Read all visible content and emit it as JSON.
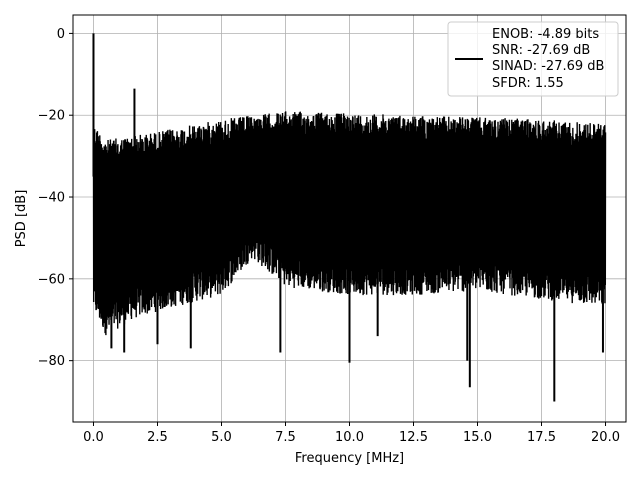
{
  "chart_data": {
    "type": "line",
    "title": "",
    "xlabel": "Frequency [MHz]",
    "ylabel": "PSD [dB]",
    "xlim": [
      -0.8,
      20.8
    ],
    "ylim": [
      -95,
      4.5
    ],
    "xticks": [
      "0.0",
      "2.5",
      "5.0",
      "7.5",
      "10.0",
      "12.5",
      "15.0",
      "17.5",
      "20.0"
    ],
    "xtick_values": [
      0,
      2.5,
      5,
      7.5,
      10,
      12.5,
      15,
      17.5,
      20
    ],
    "yticks": [
      "0",
      "−20",
      "−40",
      "−60",
      "−80"
    ],
    "ytick_values": [
      0,
      -20,
      -40,
      -60,
      -80
    ],
    "grid": true,
    "legend_position": "top-right",
    "legend": [
      "ENOB: -4.89 bits",
      "SNR: -27.69 dB",
      "SINAD: -27.69 dB",
      "SFDR: 1.55"
    ],
    "series": [
      {
        "color": "#000000",
        "x_start": 0,
        "x_end": 20,
        "upper_envelope": [
          [
            0,
            -22
          ],
          [
            0.5,
            -26
          ],
          [
            1.5,
            -25
          ],
          [
            2.5,
            -24
          ],
          [
            5,
            -21
          ],
          [
            7.5,
            -19
          ],
          [
            10,
            -19.5
          ],
          [
            12.5,
            -20
          ],
          [
            15,
            -20.5
          ],
          [
            17.5,
            -21
          ],
          [
            20,
            -22
          ]
        ],
        "lower_envelope": [
          [
            0,
            -68
          ],
          [
            0.5,
            -74
          ],
          [
            1.5,
            -70
          ],
          [
            2.5,
            -68
          ],
          [
            5,
            -64
          ],
          [
            6.2,
            -55
          ],
          [
            7.5,
            -62
          ],
          [
            10,
            -64
          ],
          [
            12.5,
            -64
          ],
          [
            15,
            -63
          ],
          [
            17.5,
            -65
          ],
          [
            20,
            -67
          ]
        ],
        "spikes": [
          {
            "x": 0.0,
            "y": 0
          },
          {
            "x": 1.6,
            "y": -13.5
          },
          {
            "x": 0.7,
            "y": -77
          },
          {
            "x": 1.2,
            "y": -78
          },
          {
            "x": 2.5,
            "y": -76
          },
          {
            "x": 3.8,
            "y": -77
          },
          {
            "x": 7.3,
            "y": -78
          },
          {
            "x": 10.0,
            "y": -80.5
          },
          {
            "x": 11.1,
            "y": -74
          },
          {
            "x": 14.7,
            "y": -86.5
          },
          {
            "x": 14.6,
            "y": -80
          },
          {
            "x": 18.0,
            "y": -90
          },
          {
            "x": 19.9,
            "y": -78
          }
        ]
      }
    ]
  }
}
